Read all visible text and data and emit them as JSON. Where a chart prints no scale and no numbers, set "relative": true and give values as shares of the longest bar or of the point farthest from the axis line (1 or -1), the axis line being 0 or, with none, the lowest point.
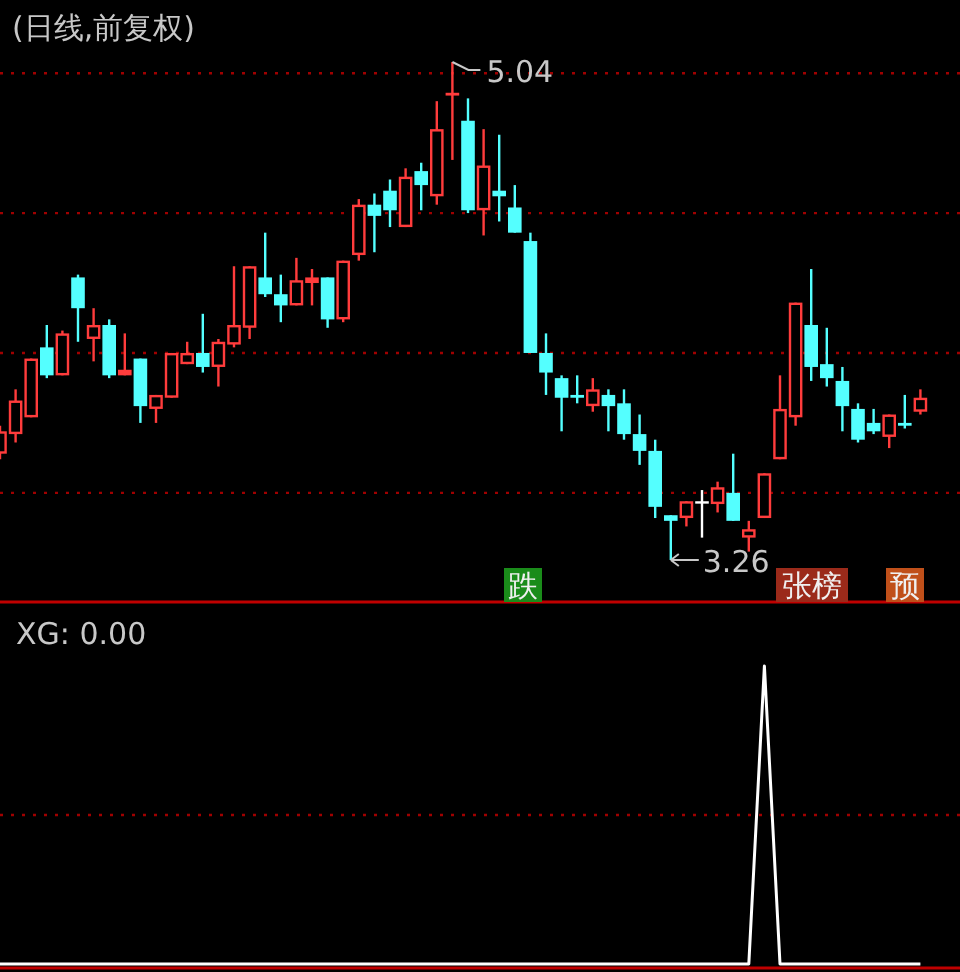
{
  "chart_data": [
    {
      "type": "candlestick",
      "title": "(日线,前复权)",
      "categories": [
        null,
        null,
        null,
        null,
        null,
        null,
        null,
        null,
        null,
        null,
        null,
        null,
        null,
        null,
        null,
        null,
        null,
        null,
        null,
        null,
        null,
        null,
        null,
        null,
        null,
        null,
        null,
        null,
        null,
        null,
        null,
        null,
        null,
        null,
        null,
        null,
        null,
        null,
        null,
        null,
        null,
        null,
        null,
        null,
        null,
        null,
        null,
        null,
        null,
        null,
        null,
        null,
        null,
        null,
        null,
        null,
        null,
        null,
        null,
        null
      ],
      "ohlc": [
        [
          3.64,
          3.74,
          3.62,
          3.72
        ],
        [
          3.71,
          3.87,
          3.68,
          3.83
        ],
        [
          3.77,
          3.98,
          3.77,
          3.98
        ],
        [
          4.02,
          4.1,
          3.91,
          3.92
        ],
        [
          3.92,
          4.08,
          3.92,
          4.07
        ],
        [
          4.27,
          4.28,
          4.04,
          4.16
        ],
        [
          4.05,
          4.16,
          3.97,
          4.1
        ],
        [
          4.1,
          4.12,
          3.91,
          3.92
        ],
        [
          3.92,
          4.07,
          3.92,
          3.94
        ],
        [
          3.98,
          3.98,
          3.75,
          3.81
        ],
        [
          3.8,
          3.85,
          3.75,
          3.85
        ],
        [
          3.84,
          4.0,
          3.84,
          4.0
        ],
        [
          3.96,
          4.04,
          3.96,
          4.0
        ],
        [
          4.0,
          4.14,
          3.93,
          3.95
        ],
        [
          3.95,
          4.05,
          3.88,
          4.04
        ],
        [
          4.03,
          4.31,
          4.02,
          4.1
        ],
        [
          4.09,
          4.31,
          4.05,
          4.31
        ],
        [
          4.27,
          4.43,
          4.2,
          4.21
        ],
        [
          4.21,
          4.28,
          4.11,
          4.17
        ],
        [
          4.17,
          4.34,
          4.17,
          4.26
        ],
        [
          4.25,
          4.3,
          4.17,
          4.27
        ],
        [
          4.27,
          4.27,
          4.09,
          4.12
        ],
        [
          4.12,
          4.33,
          4.11,
          4.33
        ],
        [
          4.35,
          4.55,
          4.33,
          4.53
        ],
        [
          4.53,
          4.57,
          4.36,
          4.49
        ],
        [
          4.58,
          4.62,
          4.45,
          4.51
        ],
        [
          4.45,
          4.66,
          4.45,
          4.63
        ],
        [
          4.65,
          4.68,
          4.51,
          4.6
        ],
        [
          4.56,
          4.9,
          4.53,
          4.8
        ],
        [
          4.92,
          5.04,
          4.69,
          4.93
        ],
        [
          4.83,
          4.91,
          4.5,
          4.51
        ],
        [
          4.51,
          4.8,
          4.42,
          4.67
        ],
        [
          4.58,
          4.78,
          4.47,
          4.56
        ],
        [
          4.52,
          4.6,
          4.43,
          4.43
        ],
        [
          4.4,
          4.43,
          4.0,
          4.0
        ],
        [
          4.0,
          4.07,
          3.85,
          3.93
        ],
        [
          3.91,
          3.92,
          3.72,
          3.84
        ],
        [
          3.85,
          3.92,
          3.82,
          3.84
        ],
        [
          3.81,
          3.91,
          3.79,
          3.87
        ],
        [
          3.85,
          3.87,
          3.72,
          3.81
        ],
        [
          3.82,
          3.87,
          3.69,
          3.71
        ],
        [
          3.71,
          3.78,
          3.6,
          3.65
        ],
        [
          3.65,
          3.69,
          3.41,
          3.45
        ],
        [
          3.42,
          3.42,
          3.26,
          3.4
        ],
        [
          3.41,
          3.47,
          3.38,
          3.47
        ],
        [
          3.47,
          3.51,
          3.34,
          3.47
        ],
        [
          3.46,
          3.54,
          3.43,
          3.52
        ],
        [
          3.5,
          3.64,
          3.4,
          3.4
        ],
        [
          3.34,
          3.4,
          3.29,
          3.37
        ],
        [
          3.41,
          3.57,
          3.41,
          3.57
        ],
        [
          3.62,
          3.92,
          3.62,
          3.8
        ],
        [
          3.77,
          4.18,
          3.74,
          4.18
        ],
        [
          4.1,
          4.3,
          3.9,
          3.95
        ],
        [
          3.96,
          4.09,
          3.88,
          3.91
        ],
        [
          3.9,
          3.95,
          3.72,
          3.81
        ],
        [
          3.8,
          3.82,
          3.68,
          3.69
        ],
        [
          3.75,
          3.8,
          3.71,
          3.72
        ],
        [
          3.7,
          3.78,
          3.66,
          3.78
        ],
        [
          3.75,
          3.85,
          3.73,
          3.74
        ],
        [
          3.79,
          3.87,
          3.78,
          3.84
        ]
      ],
      "colors": [
        "#ff3c3c",
        "#ff3c3c",
        "#ff3c3c",
        "#54ffff",
        "#ff3c3c",
        "#54ffff",
        "#ff3c3c",
        "#54ffff",
        "#ff3c3c",
        "#54ffff",
        "#ff3c3c",
        "#ff3c3c",
        "#ff3c3c",
        "#54ffff",
        "#ff3c3c",
        "#ff3c3c",
        "#ff3c3c",
        "#54ffff",
        "#54ffff",
        "#ff3c3c",
        "#ff3c3c",
        "#54ffff",
        "#ff3c3c",
        "#ff3c3c",
        "#54ffff",
        "#54ffff",
        "#ff3c3c",
        "#54ffff",
        "#ff3c3c",
        "#ff3c3c",
        "#54ffff",
        "#ff3c3c",
        "#54ffff",
        "#54ffff",
        "#54ffff",
        "#54ffff",
        "#54ffff",
        "#54ffff",
        "#ff3c3c",
        "#54ffff",
        "#54ffff",
        "#54ffff",
        "#54ffff",
        "#54ffff",
        "#ff3c3c",
        "#ffffff",
        "#ff3c3c",
        "#54ffff",
        "#ff3c3c",
        "#ff3c3c",
        "#ff3c3c",
        "#ff3c3c",
        "#54ffff",
        "#54ffff",
        "#54ffff",
        "#54ffff",
        "#54ffff",
        "#ff3c3c",
        "#54ffff",
        "#ff3c3c"
      ],
      "yticks": [
        {
          "value": 3.5,
          "label": null
        },
        {
          "value": 4.0,
          "label": null
        },
        {
          "value": 4.5,
          "label": null
        },
        {
          "value": 5.0,
          "label": null
        }
      ],
      "grid": "y",
      "annotations": [
        "5.04",
        "3.26",
        "跌",
        "张榜",
        "预"
      ]
    },
    {
      "type": "line",
      "title": "XG: 0.00",
      "relative": true,
      "categories": [
        null,
        null,
        null,
        null,
        null,
        null,
        null,
        null,
        null,
        null,
        null,
        null,
        null,
        null,
        null,
        null,
        null,
        null,
        null,
        null,
        null,
        null,
        null,
        null,
        null,
        null,
        null,
        null,
        null,
        null,
        null,
        null,
        null,
        null,
        null,
        null,
        null,
        null,
        null,
        null,
        null,
        null,
        null,
        null,
        null,
        null,
        null,
        null,
        null,
        null,
        null,
        null,
        null,
        null,
        null,
        null,
        null,
        null,
        null,
        null
      ],
      "series": [
        {
          "color": "#ffffff",
          "values": [
            0,
            0,
            0,
            0,
            0,
            0,
            0,
            0,
            0,
            0,
            0,
            0,
            0,
            0,
            0,
            0,
            0,
            0,
            0,
            0,
            0,
            0,
            0,
            0,
            0,
            0,
            0,
            0,
            0,
            0,
            0,
            0,
            0,
            0,
            0,
            0,
            0,
            0,
            0,
            0,
            0,
            0,
            0,
            0,
            0,
            0,
            0,
            0,
            0,
            1,
            0,
            0,
            0,
            0,
            0,
            0,
            0,
            0,
            0,
            0
          ]
        }
      ],
      "ref_lines": [
        {
          "axis": "y",
          "value": 0.5,
          "color": "#a00000",
          "line_style": "dotted"
        }
      ]
    }
  ]
}
